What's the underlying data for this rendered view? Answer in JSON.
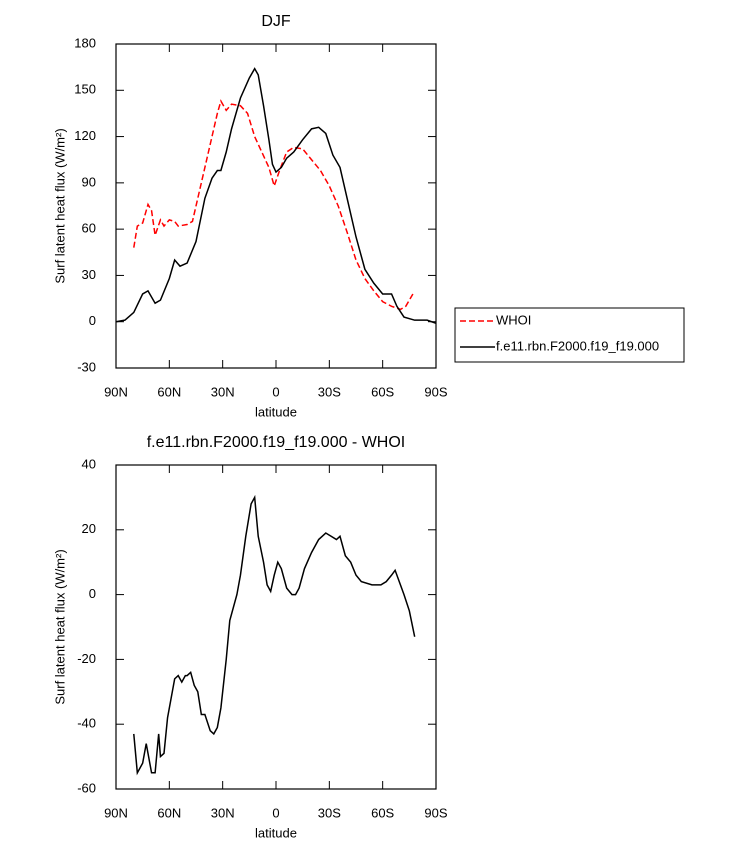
{
  "chart_data": [
    {
      "type": "line",
      "title": "DJF",
      "xlabel": "latitude",
      "ylabel": "Surf latent heat flux (W/m²)",
      "xlim": [
        90,
        -90
      ],
      "xticks": [
        {
          "value": 90,
          "label": "90N"
        },
        {
          "value": 60,
          "label": "60N"
        },
        {
          "value": 30,
          "label": "30N"
        },
        0,
        {
          "value": -30,
          "label": "30S"
        },
        {
          "value": -60,
          "label": "60S"
        },
        {
          "value": -90,
          "label": "90S"
        }
      ],
      "ylim": [
        -30,
        180
      ],
      "yticks": [
        -30,
        0,
        30,
        60,
        90,
        120,
        150,
        180
      ],
      "legend_position": "right",
      "series": [
        {
          "name": "WHOI",
          "color": "#ff0000",
          "dashed": true,
          "x": [
            80,
            78,
            75,
            72,
            70,
            68,
            65,
            63,
            60,
            57,
            55,
            50,
            47,
            43,
            38,
            33,
            31,
            28,
            25,
            20,
            16,
            12,
            8,
            4,
            1,
            -2,
            -6,
            -10,
            -15,
            -20,
            -25,
            -30,
            -35,
            -40,
            -45,
            -50,
            -55,
            -60,
            -65,
            -70,
            -73,
            -77
          ],
          "values": [
            48,
            62,
            64,
            76,
            72,
            56,
            66,
            62,
            66,
            65,
            62,
            63,
            65,
            85,
            110,
            135,
            143,
            137,
            141,
            140,
            135,
            120,
            110,
            100,
            88,
            98,
            110,
            113,
            112,
            105,
            98,
            88,
            75,
            58,
            40,
            28,
            20,
            13,
            10,
            8,
            10,
            18
          ]
        },
        {
          "name": "f.e11.rbn.F2000.f19_f19.000",
          "color": "#000000",
          "dashed": false,
          "x": [
            90,
            85,
            80,
            75,
            72,
            68,
            65,
            60,
            57,
            54,
            50,
            45,
            40,
            36,
            33,
            31,
            28,
            25,
            20,
            15,
            12,
            10,
            7,
            4,
            2,
            0,
            -3,
            -6,
            -10,
            -15,
            -20,
            -24,
            -28,
            -32,
            -36,
            -40,
            -45,
            -50,
            -55,
            -60,
            -65,
            -68,
            -72,
            -78,
            -85,
            -90
          ],
          "values": [
            0,
            1,
            6,
            18,
            20,
            12,
            14,
            28,
            40,
            36,
            38,
            52,
            80,
            93,
            98,
            98,
            110,
            125,
            145,
            158,
            164,
            160,
            140,
            118,
            102,
            97,
            100,
            106,
            110,
            118,
            125,
            126,
            122,
            108,
            100,
            80,
            55,
            34,
            25,
            18,
            18,
            10,
            3,
            1,
            1,
            -1
          ]
        }
      ]
    },
    {
      "type": "line",
      "title": "f.e11.rbn.F2000.f19_f19.000 - WHOI",
      "xlabel": "latitude",
      "ylabel": "Surf latent heat flux (W/m²)",
      "xlim": [
        90,
        -90
      ],
      "xticks": [
        {
          "value": 90,
          "label": "90N"
        },
        {
          "value": 60,
          "label": "60N"
        },
        {
          "value": 30,
          "label": "30N"
        },
        0,
        {
          "value": -30,
          "label": "30S"
        },
        {
          "value": -60,
          "label": "60S"
        },
        {
          "value": -90,
          "label": "90S"
        }
      ],
      "ylim": [
        -60,
        40
      ],
      "yticks": [
        -60,
        -40,
        -20,
        0,
        20,
        40
      ],
      "series": [
        {
          "color": "#000000",
          "dashed": false,
          "x": [
            80,
            78,
            75,
            73,
            70,
            68,
            66,
            65,
            63,
            61,
            57,
            55,
            53,
            51,
            50,
            48,
            46,
            44,
            42,
            40,
            37,
            35,
            33,
            31,
            28,
            26,
            22,
            20,
            17,
            14,
            12,
            10,
            7,
            5,
            3,
            1,
            -1,
            -3,
            -6,
            -9,
            -11,
            -13,
            -16,
            -20,
            -24,
            -28,
            -31,
            -34,
            -36,
            -39,
            -42,
            -45,
            -48,
            -54,
            -59,
            -62,
            -65,
            -67,
            -70,
            -72,
            -75,
            -78
          ],
          "values": [
            -43,
            -55,
            -52,
            -46,
            -55,
            -55,
            -43,
            -50,
            -49,
            -38,
            -26,
            -25,
            -27,
            -25,
            -25,
            -24,
            -28,
            -30,
            -37,
            -37,
            -42,
            -43,
            -41,
            -35,
            -20,
            -8,
            0,
            6,
            18,
            28,
            30,
            18,
            10,
            3,
            1,
            6,
            10,
            8,
            2,
            0,
            0,
            2,
            8,
            13,
            17,
            19,
            18,
            17,
            18,
            12,
            10,
            6,
            4,
            3,
            3,
            4,
            6,
            7.5,
            3,
            0,
            -5,
            -13
          ]
        }
      ]
    }
  ]
}
